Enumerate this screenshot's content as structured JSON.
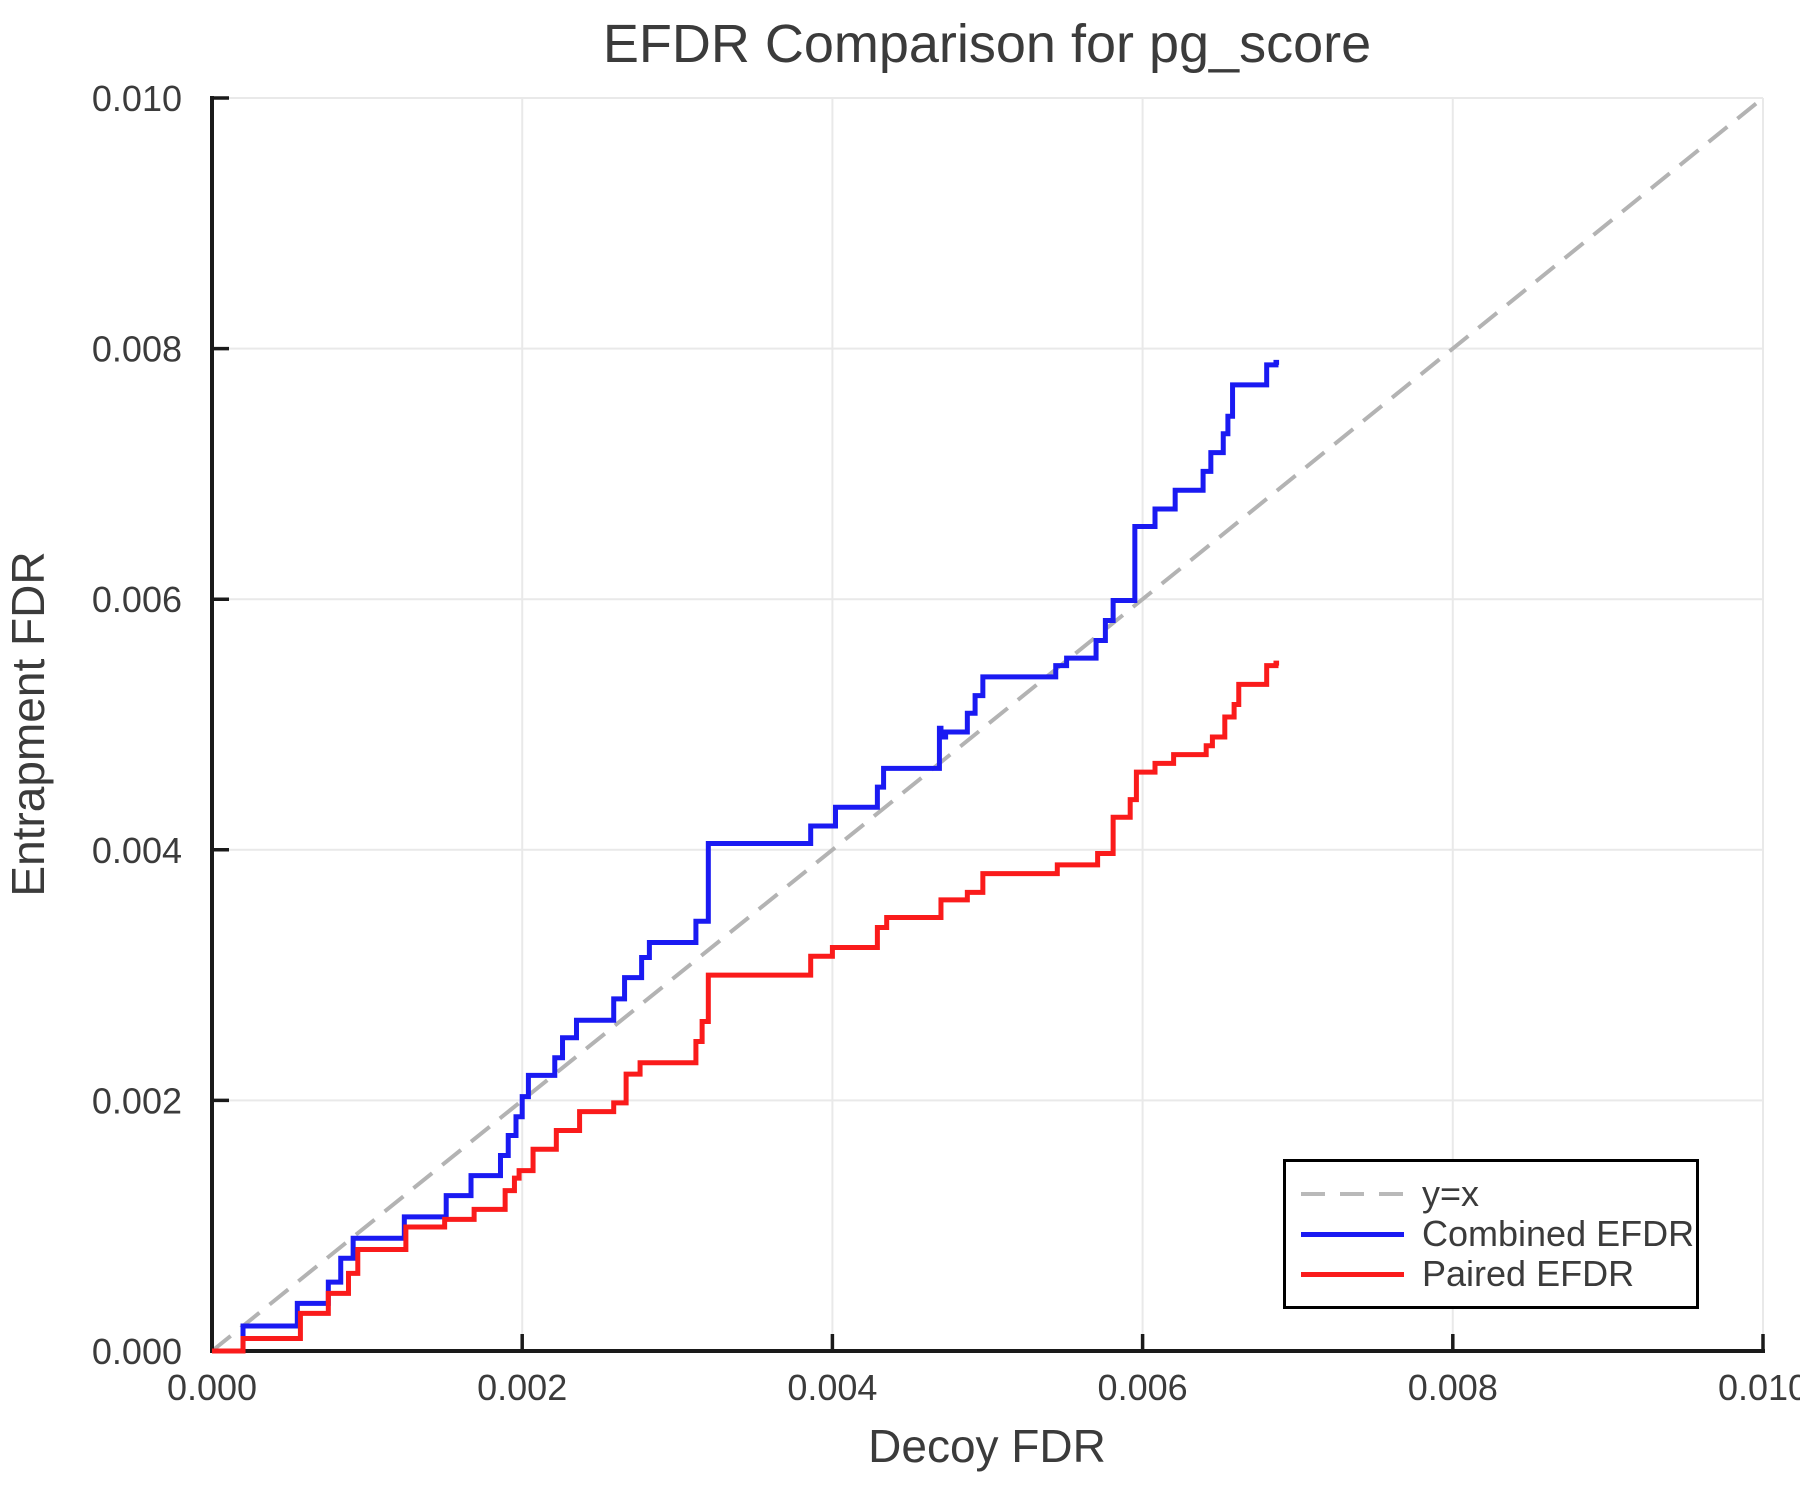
{
  "title": "EFDR Comparison for pg_score",
  "axes": {
    "x": {
      "label": "Decoy FDR",
      "min": 0.0,
      "max": 0.01,
      "ticks": [
        "0.000",
        "0.002",
        "0.004",
        "0.006",
        "0.008",
        "0.010"
      ]
    },
    "y": {
      "label": "Entrapment FDR",
      "min": 0.0,
      "max": 0.01,
      "ticks": [
        "0.000",
        "0.002",
        "0.004",
        "0.006",
        "0.008",
        "0.010"
      ]
    }
  },
  "colors": {
    "combined": "#1a1af2",
    "paired": "#fa1b1b",
    "reference": "#b3b3b3",
    "grid": "#e9e9e9",
    "spine": "#1a1a1a",
    "text": "#3b3b3b"
  },
  "legend": {
    "items": [
      {
        "label": "y=x",
        "color": "#b9b9b9",
        "dashed": true
      },
      {
        "label": "Combined EFDR",
        "color": "#1a1af2",
        "dashed": false
      },
      {
        "label": "Paired EFDR",
        "color": "#fa1b1b",
        "dashed": false
      }
    ]
  },
  "chart_data": {
    "type": "line",
    "subtype": "step",
    "title": "EFDR Comparison for pg_score",
    "xlabel": "Decoy FDR",
    "ylabel": "Entrapment FDR",
    "xlim": [
      0.0,
      0.01
    ],
    "ylim": [
      0.0,
      0.01
    ],
    "grid": true,
    "legend_position": "lower right",
    "reference_line": {
      "label": "y=x",
      "from": [
        0.0,
        0.0
      ],
      "to": [
        0.01,
        0.01
      ],
      "style": "dashed",
      "color": "#b3b3b3"
    },
    "series": [
      {
        "name": "Combined EFDR",
        "color": "#1a1af2",
        "style": "step",
        "end_x": 0.00688,
        "points": [
          [
            0.0,
            0.0
          ],
          [
            0.0002,
            0.0002
          ],
          [
            0.00055,
            0.00038
          ],
          [
            0.00075,
            0.00055
          ],
          [
            0.00083,
            0.00074
          ],
          [
            0.00091,
            0.0009
          ],
          [
            0.00124,
            0.00107
          ],
          [
            0.00151,
            0.00124
          ],
          [
            0.00167,
            0.0014
          ],
          [
            0.00186,
            0.00156
          ],
          [
            0.00191,
            0.00172
          ],
          [
            0.00196,
            0.00187
          ],
          [
            0.002,
            0.00203
          ],
          [
            0.00204,
            0.0022
          ],
          [
            0.00221,
            0.00234
          ],
          [
            0.00226,
            0.0025
          ],
          [
            0.00235,
            0.00264
          ],
          [
            0.00259,
            0.00281
          ],
          [
            0.00266,
            0.00298
          ],
          [
            0.00277,
            0.00314
          ],
          [
            0.00282,
            0.00326
          ],
          [
            0.00312,
            0.00343
          ],
          [
            0.0032,
            0.00405
          ],
          [
            0.00386,
            0.00419
          ],
          [
            0.00402,
            0.00434
          ],
          [
            0.00429,
            0.0045
          ],
          [
            0.00433,
            0.00465
          ],
          [
            0.00469,
            0.00497
          ],
          [
            0.0047,
            0.0049
          ],
          [
            0.00473,
            0.00494
          ],
          [
            0.00487,
            0.00509
          ],
          [
            0.00492,
            0.00523
          ],
          [
            0.00497,
            0.00538
          ],
          [
            0.00544,
            0.00547
          ],
          [
            0.00551,
            0.00553
          ],
          [
            0.0057,
            0.00567
          ],
          [
            0.00576,
            0.00583
          ],
          [
            0.00581,
            0.00599
          ],
          [
            0.00595,
            0.00658
          ],
          [
            0.00608,
            0.00672
          ],
          [
            0.00621,
            0.00687
          ],
          [
            0.00639,
            0.00702
          ],
          [
            0.00644,
            0.00717
          ],
          [
            0.00652,
            0.00732
          ],
          [
            0.00655,
            0.00746
          ],
          [
            0.00658,
            0.00771
          ],
          [
            0.0068,
            0.00787
          ],
          [
            0.00686,
            0.00789
          ]
        ]
      },
      {
        "name": "Paired EFDR",
        "color": "#fa1b1b",
        "style": "step",
        "end_x": 0.00688,
        "points": [
          [
            0.0,
            0.0
          ],
          [
            0.0002,
            0.0001
          ],
          [
            0.00057,
            0.0003
          ],
          [
            0.00075,
            0.00046
          ],
          [
            0.00088,
            0.00062
          ],
          [
            0.00094,
            0.00081
          ],
          [
            0.00125,
            0.00099
          ],
          [
            0.0015,
            0.00105
          ],
          [
            0.00169,
            0.00113
          ],
          [
            0.00189,
            0.00128
          ],
          [
            0.00195,
            0.00138
          ],
          [
            0.00198,
            0.00144
          ],
          [
            0.00207,
            0.00161
          ],
          [
            0.00222,
            0.00176
          ],
          [
            0.00237,
            0.00191
          ],
          [
            0.00259,
            0.00198
          ],
          [
            0.00267,
            0.00221
          ],
          [
            0.00276,
            0.0023
          ],
          [
            0.00312,
            0.00247
          ],
          [
            0.00316,
            0.00263
          ],
          [
            0.0032,
            0.003
          ],
          [
            0.00386,
            0.00315
          ],
          [
            0.004,
            0.00322
          ],
          [
            0.00429,
            0.00338
          ],
          [
            0.00435,
            0.00346
          ],
          [
            0.0047,
            0.0036
          ],
          [
            0.00487,
            0.00366
          ],
          [
            0.00497,
            0.00381
          ],
          [
            0.00545,
            0.00388
          ],
          [
            0.00571,
            0.00397
          ],
          [
            0.00581,
            0.00426
          ],
          [
            0.00592,
            0.0044
          ],
          [
            0.00596,
            0.00462
          ],
          [
            0.00608,
            0.00469
          ],
          [
            0.0062,
            0.00476
          ],
          [
            0.00641,
            0.00483
          ],
          [
            0.00645,
            0.0049
          ],
          [
            0.00653,
            0.00506
          ],
          [
            0.00659,
            0.00516
          ],
          [
            0.00662,
            0.00532
          ],
          [
            0.0068,
            0.00547
          ],
          [
            0.00686,
            0.00549
          ]
        ]
      }
    ]
  }
}
